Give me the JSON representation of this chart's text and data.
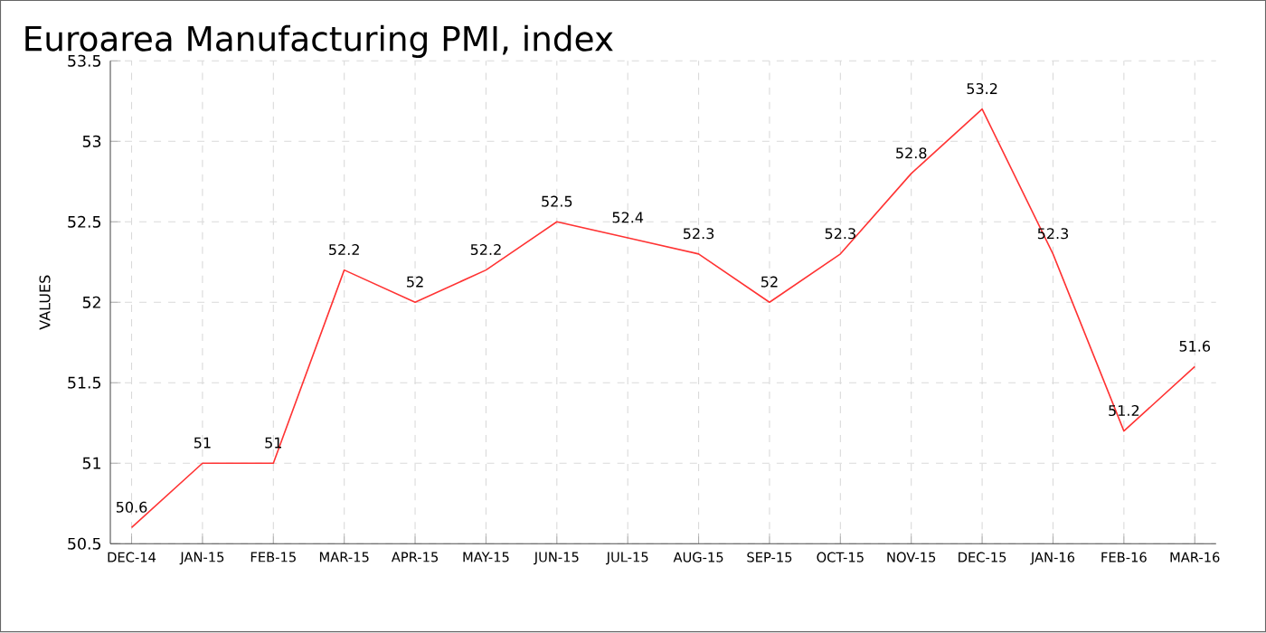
{
  "chart_data": {
    "type": "line",
    "title": "Euroarea Manufacturing PMI, index",
    "ylabel": "VALUES",
    "categories": [
      "DEC-14",
      "JAN-15",
      "FEB-15",
      "MAR-15",
      "APR-15",
      "MAY-15",
      "JUN-15",
      "JUL-15",
      "AUG-15",
      "SEP-15",
      "OCT-15",
      "NOV-15",
      "DEC-15",
      "JAN-16",
      "FEB-16",
      "MAR-16"
    ],
    "series": [
      {
        "color": "#ff3333",
        "values": [
          50.6,
          51,
          51,
          52.2,
          52,
          52.2,
          52.5,
          52.4,
          52.3,
          52,
          52.3,
          52.8,
          53.2,
          52.3,
          51.2,
          51.6
        ]
      }
    ],
    "ylim": [
      50.5,
      53.5
    ],
    "yticks": [
      50.5,
      51,
      51.5,
      52,
      52.5,
      53,
      53.5
    ],
    "grid": true,
    "data_labels": true,
    "marker": "none",
    "line_style": "solid"
  }
}
